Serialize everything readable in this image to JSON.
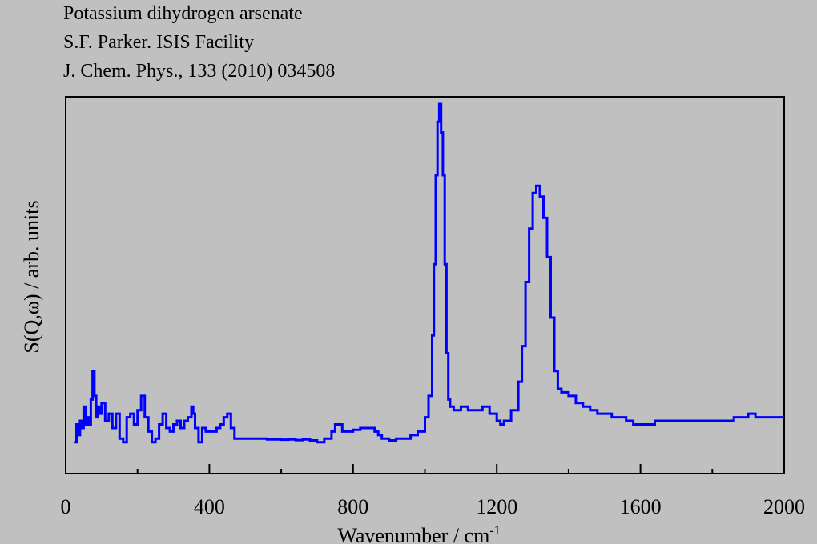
{
  "header": {
    "line1": "Potassium dihydrogen arsenate",
    "line2": "S.F. Parker. ISIS Facility",
    "line3": "J. Chem. Phys., 133 (2010) 034508"
  },
  "chart_data": {
    "type": "line",
    "title": "Potassium dihydrogen arsenate",
    "xlabel": "Wavenumber / cm",
    "xlabel_superscript": "-1",
    "ylabel": "S(Q,ω) / arb. units",
    "xlim": [
      0,
      2000
    ],
    "ylim": [
      0,
      1.0
    ],
    "x_ticks": [
      0,
      400,
      800,
      1200,
      1600,
      2000
    ],
    "x_minor_tick_step": 200,
    "y_ticks_shown": false,
    "grid": false,
    "legend": "none",
    "line_color": "#0000ff",
    "series": [
      {
        "x": [
          25,
          30,
          35,
          40,
          45,
          50,
          55,
          60,
          65,
          70,
          75,
          80,
          85,
          90,
          95,
          100,
          110,
          120,
          130,
          140,
          150,
          160,
          170,
          180,
          190,
          200,
          210,
          220,
          230,
          240,
          250,
          260,
          270,
          280,
          290,
          300,
          310,
          320,
          330,
          340,
          350,
          355,
          360,
          370,
          380,
          390,
          400,
          410,
          420,
          430,
          440,
          450,
          460,
          470,
          480,
          490,
          500,
          520,
          540,
          560,
          580,
          600,
          620,
          640,
          660,
          680,
          700,
          720,
          740,
          750,
          760,
          770,
          780,
          790,
          800,
          820,
          840,
          860,
          870,
          880,
          900,
          920,
          940,
          960,
          980,
          1000,
          1010,
          1020,
          1025,
          1030,
          1035,
          1040,
          1045,
          1050,
          1055,
          1060,
          1065,
          1070,
          1080,
          1100,
          1120,
          1140,
          1160,
          1170,
          1180,
          1200,
          1210,
          1220,
          1240,
          1260,
          1270,
          1280,
          1290,
          1300,
          1310,
          1320,
          1330,
          1340,
          1350,
          1360,
          1370,
          1380,
          1390,
          1400,
          1420,
          1440,
          1460,
          1480,
          1500,
          1520,
          1540,
          1560,
          1580,
          1600,
          1620,
          1640,
          1660,
          1680,
          1700,
          1720,
          1740,
          1760,
          1780,
          1800,
          1820,
          1840,
          1860,
          1880,
          1900,
          1920,
          1940,
          1960,
          1980,
          2000
        ],
        "y": [
          0.05,
          0.1,
          0.07,
          0.11,
          0.09,
          0.15,
          0.1,
          0.12,
          0.1,
          0.17,
          0.25,
          0.18,
          0.12,
          0.15,
          0.13,
          0.16,
          0.11,
          0.13,
          0.09,
          0.13,
          0.06,
          0.05,
          0.12,
          0.13,
          0.1,
          0.14,
          0.18,
          0.12,
          0.08,
          0.05,
          0.06,
          0.1,
          0.13,
          0.09,
          0.08,
          0.1,
          0.11,
          0.09,
          0.11,
          0.12,
          0.15,
          0.13,
          0.09,
          0.05,
          0.09,
          0.08,
          0.08,
          0.08,
          0.09,
          0.1,
          0.12,
          0.13,
          0.09,
          0.06,
          0.06,
          0.06,
          0.06,
          0.06,
          0.06,
          0.058,
          0.058,
          0.057,
          0.058,
          0.056,
          0.058,
          0.055,
          0.05,
          0.06,
          0.08,
          0.1,
          0.1,
          0.08,
          0.08,
          0.08,
          0.085,
          0.09,
          0.09,
          0.08,
          0.07,
          0.06,
          0.055,
          0.06,
          0.06,
          0.07,
          0.08,
          0.12,
          0.18,
          0.35,
          0.55,
          0.8,
          0.95,
          1.0,
          0.92,
          0.8,
          0.55,
          0.3,
          0.17,
          0.15,
          0.14,
          0.15,
          0.14,
          0.14,
          0.15,
          0.15,
          0.13,
          0.11,
          0.1,
          0.11,
          0.14,
          0.22,
          0.32,
          0.5,
          0.65,
          0.75,
          0.77,
          0.74,
          0.68,
          0.57,
          0.4,
          0.25,
          0.2,
          0.19,
          0.19,
          0.18,
          0.16,
          0.15,
          0.14,
          0.13,
          0.13,
          0.12,
          0.12,
          0.11,
          0.1,
          0.1,
          0.1,
          0.11,
          0.11,
          0.11,
          0.11,
          0.11,
          0.11,
          0.11,
          0.11,
          0.11,
          0.11,
          0.11,
          0.12,
          0.12,
          0.13,
          0.12,
          0.12,
          0.12,
          0.12,
          0.12
        ]
      }
    ]
  }
}
